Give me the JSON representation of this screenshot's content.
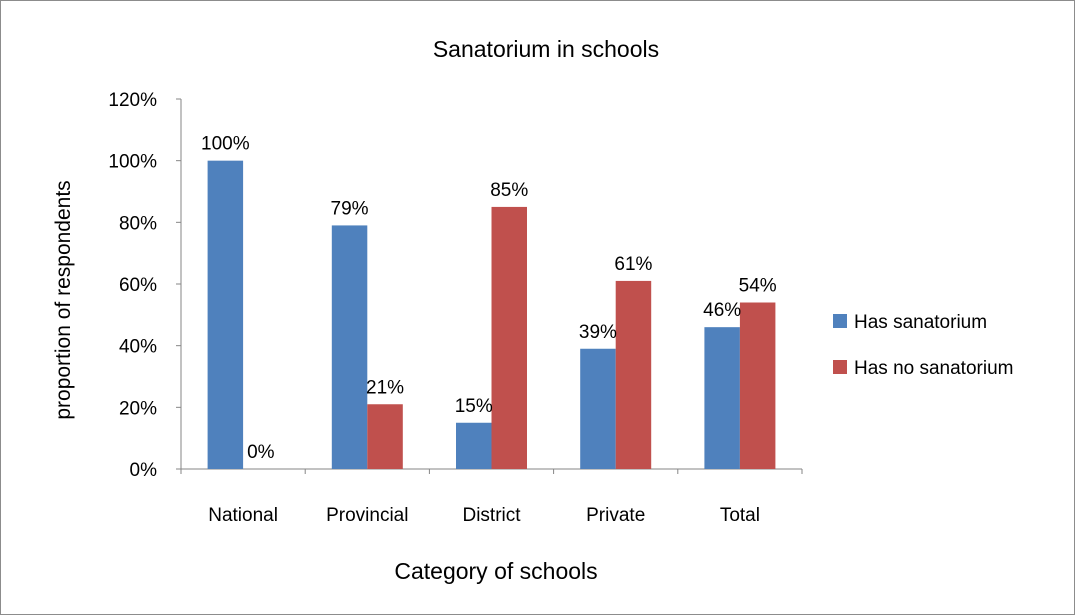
{
  "chart_data": {
    "type": "bar",
    "title": "Sanatorium in schools",
    "xlabel": "Category of schools",
    "ylabel": "proportion  of respondents",
    "categories": [
      "National",
      "Provincial",
      "District",
      "Private",
      "Total"
    ],
    "series": [
      {
        "name": "Has sanatorium",
        "values": [
          100,
          79,
          15,
          39,
          46
        ],
        "labels": [
          "100%",
          "79%",
          "15%",
          "39%",
          "46%"
        ],
        "color": "#4f81bd"
      },
      {
        "name": "Has no sanatorium",
        "values": [
          0,
          21,
          85,
          61,
          54
        ],
        "labels": [
          "0%",
          "21%",
          "85%",
          "61%",
          "54%"
        ],
        "color": "#c0504d"
      }
    ],
    "ylim": [
      0,
      120
    ],
    "yticks": [
      0,
      20,
      40,
      60,
      80,
      100,
      120
    ],
    "ytick_labels": [
      "0%",
      "20%",
      "40%",
      "60%",
      "80%",
      "100%",
      "120%"
    ],
    "grid": false,
    "legend_position": "right"
  }
}
